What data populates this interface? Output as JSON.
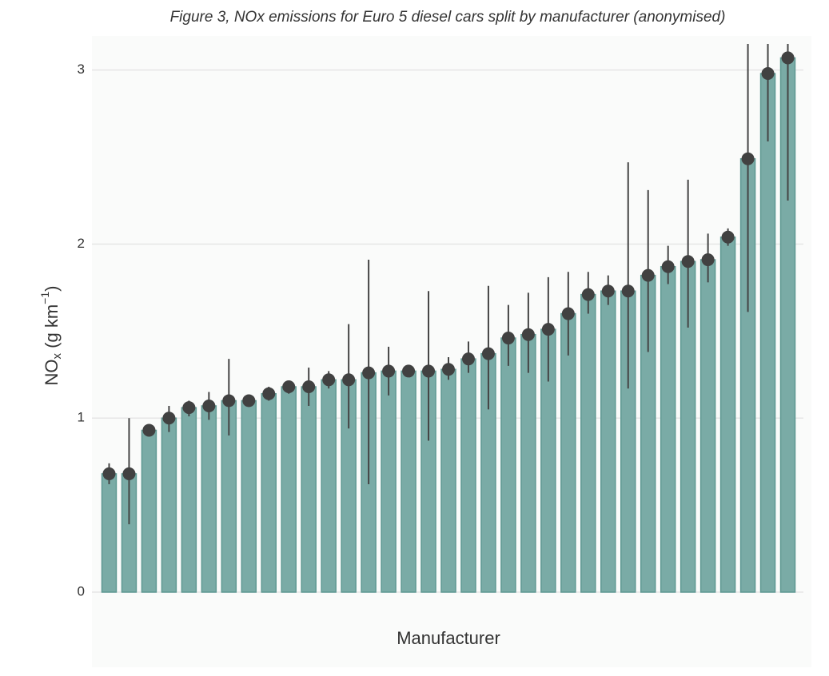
{
  "chart_data": {
    "type": "bar",
    "title": "Figure 3, NOx emissions for Euro 5 diesel cars split by manufacturer (anonymised)",
    "xlabel": "Manufacturer",
    "ylabel": [
      "NO",
      "x",
      " (g km",
      "−1",
      ")"
    ],
    "categories": [
      null,
      null,
      null,
      null,
      null,
      null,
      null,
      null,
      null,
      null,
      null,
      null,
      null,
      null,
      null,
      null,
      null,
      null,
      null,
      null,
      null,
      null,
      null,
      null,
      null,
      null,
      null,
      null,
      null,
      null,
      null,
      null,
      null,
      null,
      null
    ],
    "values": [
      0.68,
      0.68,
      0.93,
      1.0,
      1.06,
      1.07,
      1.1,
      1.1,
      1.14,
      1.18,
      1.18,
      1.22,
      1.22,
      1.26,
      1.27,
      1.27,
      1.27,
      1.28,
      1.34,
      1.37,
      1.46,
      1.48,
      1.51,
      1.6,
      1.71,
      1.73,
      1.73,
      1.82,
      1.87,
      1.9,
      1.91,
      2.04,
      2.49,
      2.98,
      3.07
    ],
    "upper": [
      0.74,
      1.0,
      0.96,
      1.07,
      1.1,
      1.15,
      1.34,
      1.12,
      1.18,
      1.21,
      1.29,
      1.27,
      1.54,
      1.91,
      1.41,
      1.3,
      1.73,
      1.35,
      1.44,
      1.76,
      1.65,
      1.72,
      1.81,
      1.84,
      1.84,
      1.82,
      2.47,
      2.31,
      1.99,
      2.37,
      2.06,
      2.09,
      3.15,
      3.15,
      3.15
    ],
    "lower": [
      0.62,
      0.39,
      0.9,
      0.92,
      1.01,
      0.99,
      0.9,
      1.07,
      1.1,
      1.14,
      1.07,
      1.17,
      0.94,
      0.62,
      1.13,
      1.24,
      0.87,
      1.22,
      1.26,
      1.05,
      1.3,
      1.26,
      1.21,
      1.36,
      1.6,
      1.65,
      1.17,
      1.38,
      1.77,
      1.52,
      1.78,
      1.99,
      1.61,
      2.59,
      2.25
    ],
    "color": "#7aaba6",
    "marker_color": "#414141",
    "ylim": [
      0,
      3.15
    ],
    "yticks": [
      0,
      1,
      2,
      3
    ],
    "grid": true
  }
}
